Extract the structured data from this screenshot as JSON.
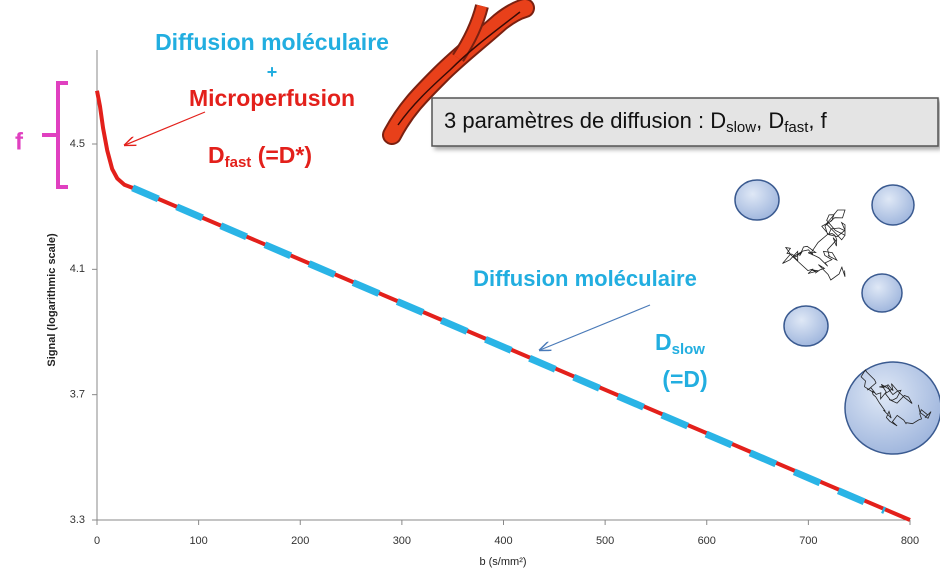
{
  "chart_data": {
    "type": "line",
    "x_label": "b (s/mm²)",
    "y_label": "Signal (logarithmic scale)",
    "xlim": [
      0,
      800
    ],
    "xticks": [
      0,
      100,
      200,
      300,
      400,
      500,
      600,
      700,
      800
    ],
    "ylim": [
      3.3,
      4.8
    ],
    "yticks": [
      3.3,
      3.7,
      4.1,
      4.5
    ],
    "series": [
      {
        "name": "Signal",
        "color": "#e3201b",
        "style": "solid",
        "x": [
          0,
          3,
          6,
          10,
          15,
          20,
          27,
          35,
          800
        ],
        "values": [
          4.67,
          4.62,
          4.55,
          4.48,
          4.42,
          4.39,
          4.37,
          4.36,
          3.3
        ]
      },
      {
        "name": "Diffusion moléculaire",
        "color": "#2ab4e6",
        "style": "dashed",
        "x": [
          35,
          775
        ],
        "values": [
          4.36,
          3.33
        ]
      }
    ],
    "annotations": {
      "top_line1": "Diffusion moléculaire",
      "top_plus": "+",
      "top_line2": "Microperfusion",
      "dfast": [
        "D",
        "fast",
        " (=D*)"
      ],
      "f_label": "f",
      "box": [
        "3 paramètres de diffusion : D",
        "slow",
        ", D",
        "fast",
        ", f"
      ],
      "mid_line": "Diffusion moléculaire",
      "dslow": [
        "D",
        "slow"
      ],
      "dslow_eq": "(=D)"
    }
  }
}
